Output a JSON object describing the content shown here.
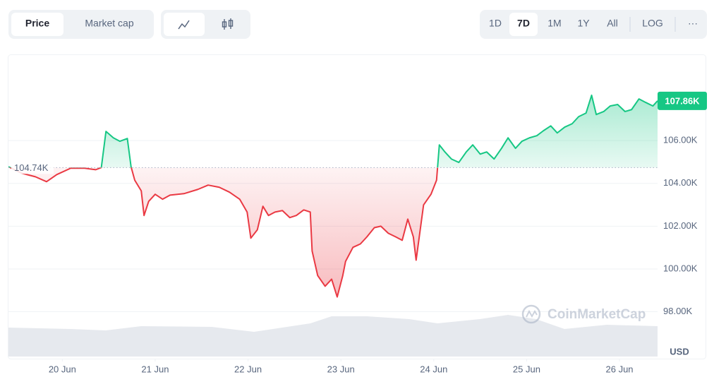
{
  "toolbar": {
    "view_tabs": [
      "Price",
      "Market cap"
    ],
    "ranges": [
      "1D",
      "7D",
      "1M",
      "1Y",
      "All",
      "LOG"
    ],
    "more": "···"
  },
  "chart_data": {
    "type": "line",
    "x": [
      19.42,
      19.56,
      19.71,
      19.83,
      19.94,
      20.09,
      20.24,
      20.36,
      20.42,
      20.47,
      20.55,
      20.62,
      20.7,
      20.74,
      20.78,
      20.85,
      20.88,
      20.93,
      21.0,
      21.08,
      21.16,
      21.31,
      21.46,
      21.57,
      21.69,
      21.8,
      21.91,
      21.99,
      22.03,
      22.1,
      22.16,
      22.22,
      22.29,
      22.37,
      22.45,
      22.52,
      22.6,
      22.67,
      22.69,
      22.75,
      22.83,
      22.9,
      22.96,
      23.02,
      23.05,
      23.13,
      23.21,
      23.28,
      23.36,
      23.43,
      23.51,
      23.59,
      23.66,
      23.72,
      23.78,
      23.81,
      23.89,
      23.97,
      24.03,
      24.06,
      24.12,
      24.19,
      24.27,
      24.35,
      24.42,
      24.5,
      24.57,
      24.65,
      24.73,
      24.8,
      24.88,
      24.95,
      25.03,
      25.11,
      25.18,
      25.26,
      25.33,
      25.41,
      25.49,
      25.56,
      25.64,
      25.7,
      25.75,
      25.83,
      25.9,
      25.98,
      26.06,
      26.13,
      26.21,
      26.28,
      26.36,
      26.41
    ],
    "values": [
      104780,
      104480,
      104310,
      104080,
      104410,
      104710,
      104710,
      104640,
      104740,
      106430,
      106130,
      105970,
      106100,
      104780,
      104150,
      103650,
      102500,
      103160,
      103490,
      103260,
      103450,
      103520,
      103720,
      103920,
      103820,
      103590,
      103260,
      102660,
      101440,
      101830,
      102930,
      102500,
      102660,
      102730,
      102400,
      102500,
      102760,
      102660,
      100840,
      99690,
      99190,
      99520,
      98690,
      99690,
      100350,
      101010,
      101170,
      101500,
      101930,
      102000,
      101670,
      101500,
      101340,
      102330,
      101500,
      100410,
      102990,
      103490,
      104150,
      105800,
      105470,
      105140,
      104980,
      105470,
      105800,
      105370,
      105470,
      105140,
      105640,
      106130,
      105640,
      105970,
      106130,
      106230,
      106460,
      106690,
      106360,
      106630,
      106790,
      107120,
      107290,
      108120,
      107220,
      107360,
      107620,
      107690,
      107360,
      107450,
      107950,
      107790,
      107620,
      107860
    ],
    "up_color": "#16c784",
    "down_color": "#ea3943",
    "baseline": {
      "value": 104740,
      "label": "104.74K"
    },
    "last_price": {
      "value": 107860,
      "label": "107.86K"
    },
    "xlim": [
      19.42,
      26.41
    ],
    "xticks": [
      {
        "value": 20,
        "label": "20 Jun"
      },
      {
        "value": 21,
        "label": "21 Jun"
      },
      {
        "value": 22,
        "label": "22 Jun"
      },
      {
        "value": 23,
        "label": "23 Jun"
      },
      {
        "value": 24,
        "label": "24 Jun"
      },
      {
        "value": 25,
        "label": "25 Jun"
      },
      {
        "value": 26,
        "label": "26 Jun"
      }
    ],
    "ylim": [
      96400,
      110000
    ],
    "yticks": [
      {
        "value": 98000,
        "label": "98.00K"
      },
      {
        "value": 100000,
        "label": "100.00K"
      },
      {
        "value": 102000,
        "label": "102.00K"
      },
      {
        "value": 104000,
        "label": "104.00K"
      },
      {
        "value": 106000,
        "label": "106.00K"
      }
    ],
    "y_unit": "USD",
    "grid": true,
    "watermark": "CoinMarketCap"
  }
}
